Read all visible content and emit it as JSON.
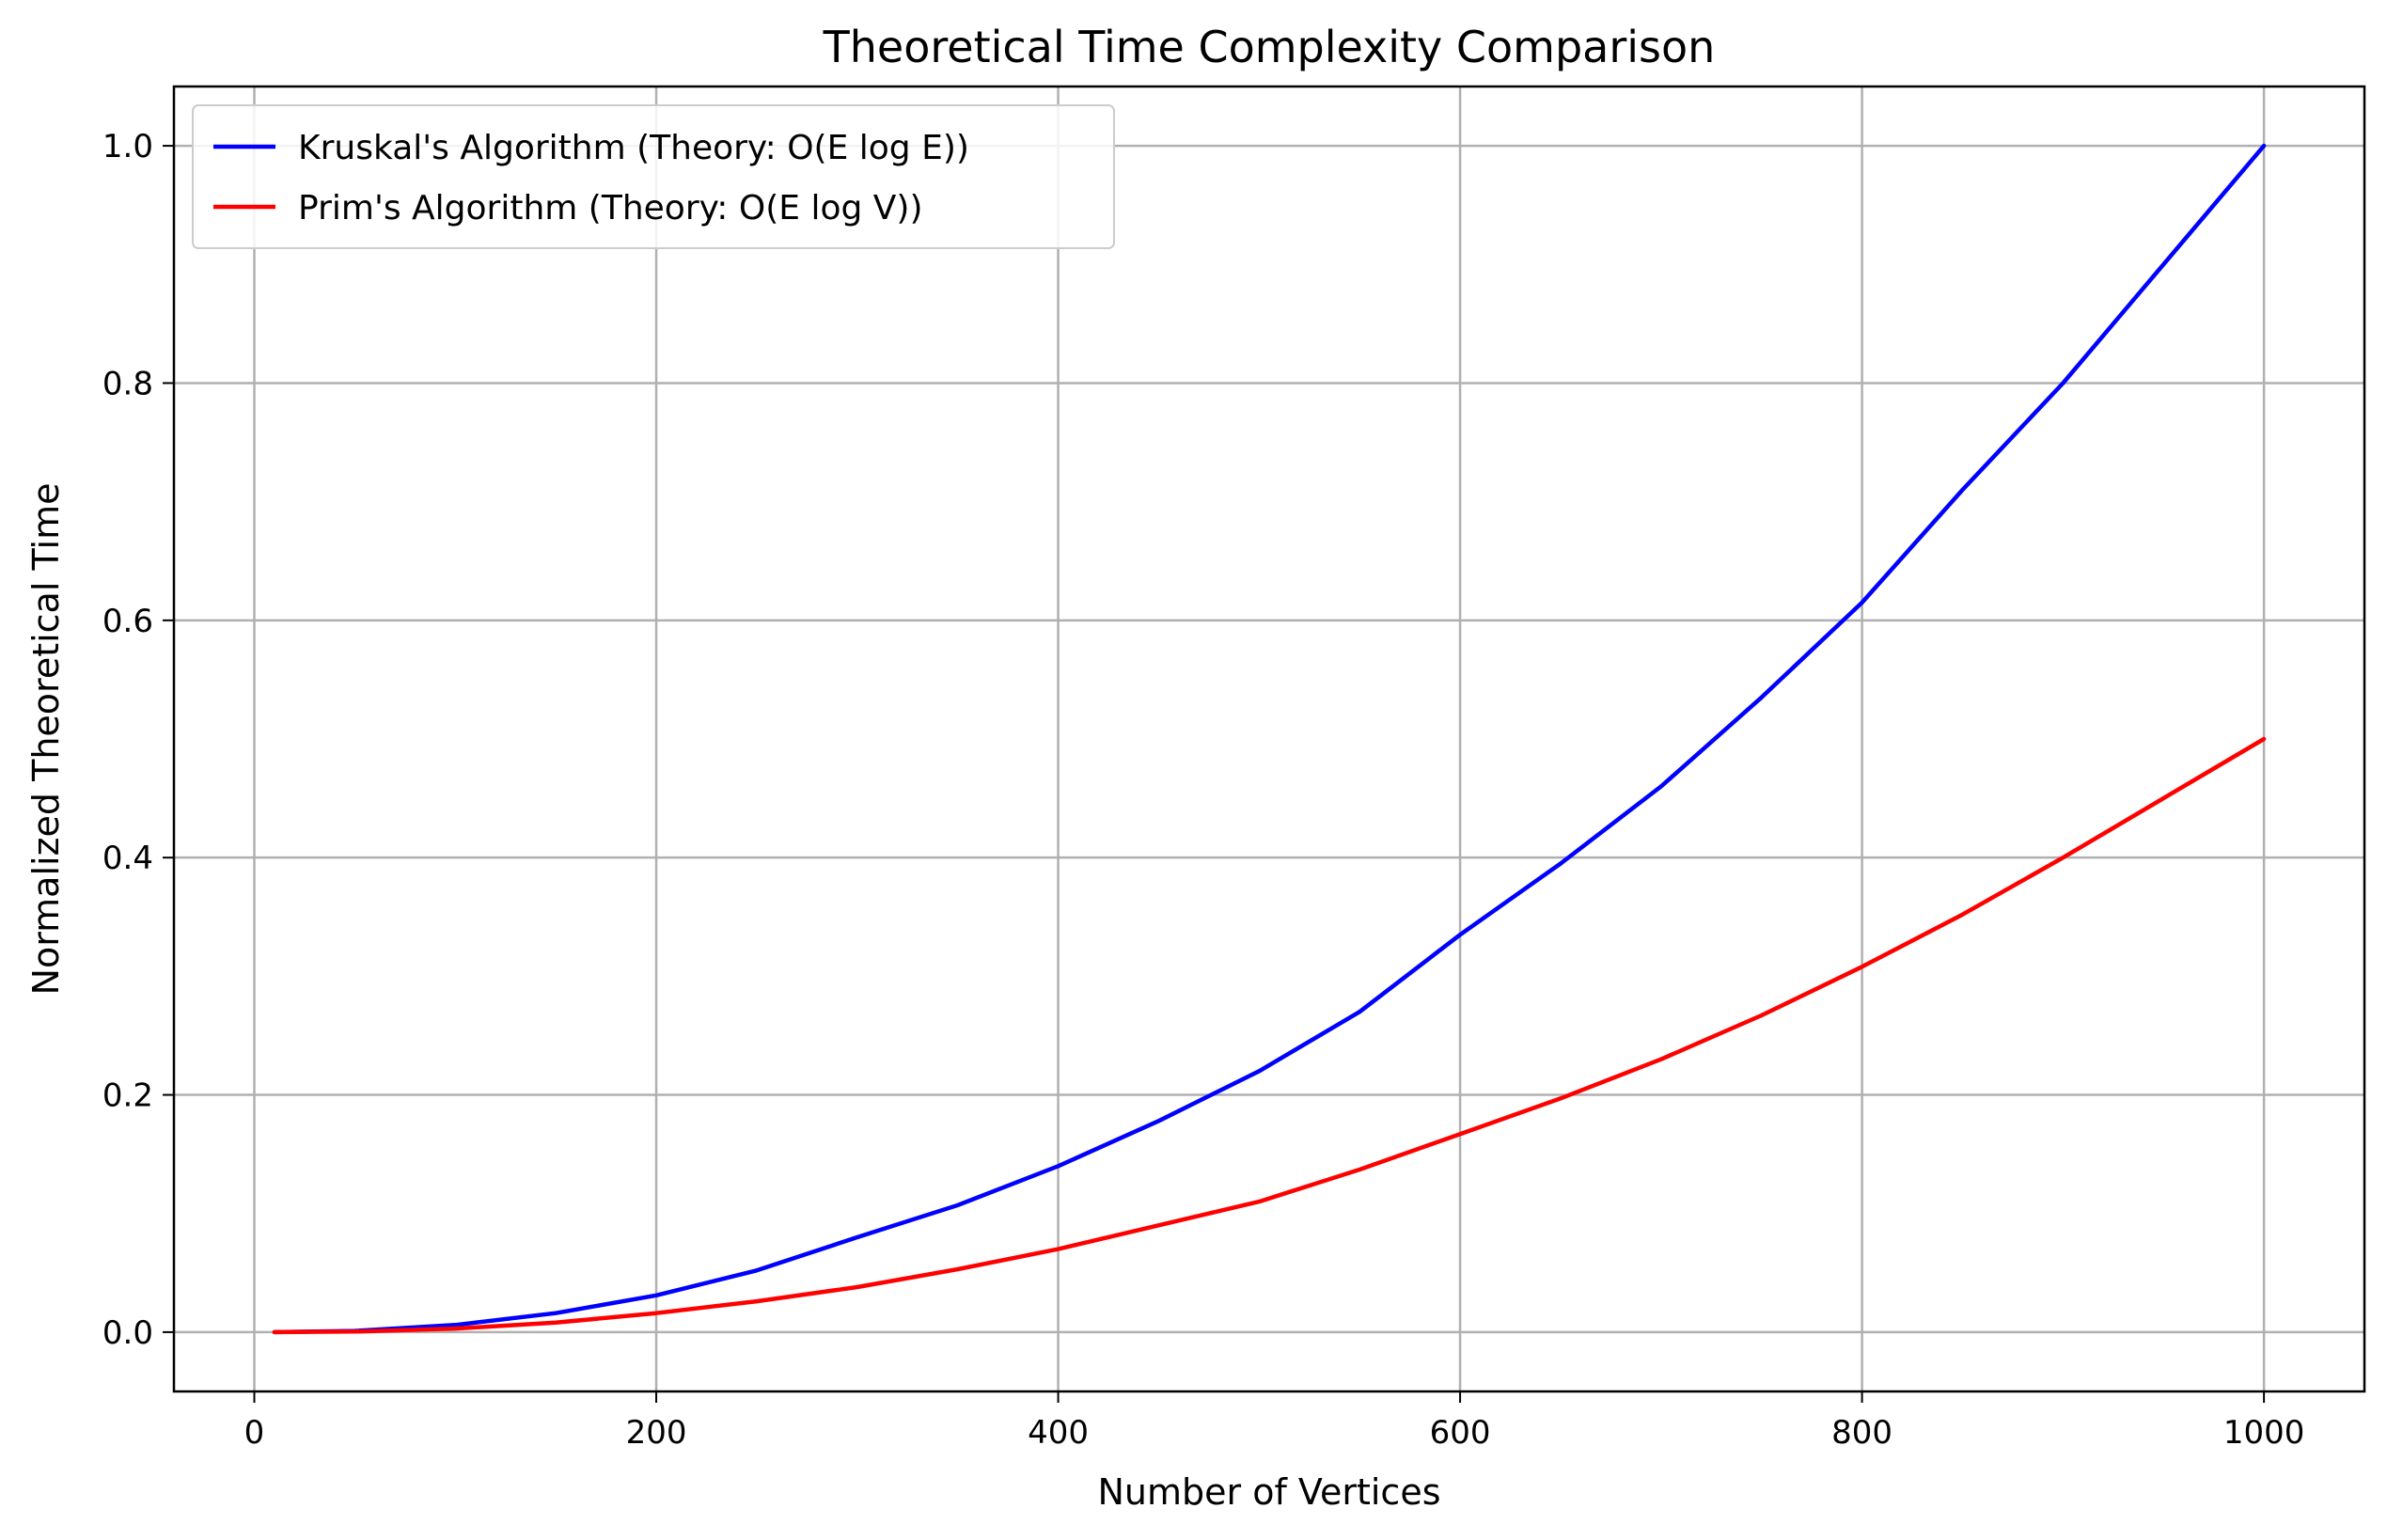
{
  "chart_data": {
    "type": "line",
    "title": "Theoretical Time Complexity Comparison",
    "xlabel": "Number of Vertices",
    "ylabel": "Normalized Theoretical Time",
    "xlim": [
      -40,
      1050
    ],
    "ylim": [
      -0.05,
      1.05
    ],
    "x_ticks": [
      0,
      200,
      400,
      600,
      800,
      1000
    ],
    "x_tick_labels": [
      "0",
      "200",
      "400",
      "600",
      "800",
      "1000"
    ],
    "y_ticks": [
      0.0,
      0.2,
      0.4,
      0.6,
      0.8,
      1.0
    ],
    "y_tick_labels": [
      "0.0",
      "0.2",
      "0.4",
      "0.6",
      "0.8",
      "1.0"
    ],
    "grid": true,
    "legend_position": "top-left",
    "x": [
      10,
      50,
      100,
      150,
      200,
      250,
      300,
      350,
      400,
      450,
      500,
      550,
      600,
      650,
      700,
      750,
      800,
      850,
      900,
      950,
      1000
    ],
    "series": [
      {
        "name": "Kruskal's Algorithm (Theory: O(E log E))",
        "color": "#0000ff",
        "values": [
          0.0,
          0.001,
          0.006,
          0.016,
          0.031,
          0.052,
          0.08,
          0.107,
          0.14,
          0.178,
          0.22,
          0.27,
          0.335,
          0.395,
          0.46,
          0.535,
          0.615,
          0.71,
          0.8,
          0.9,
          1.0
        ]
      },
      {
        "name": "Prim's Algorithm (Theory: O(E log V))",
        "color": "#ff0000",
        "values": [
          0.0,
          0.0005,
          0.003,
          0.008,
          0.016,
          0.026,
          0.038,
          0.053,
          0.07,
          0.09,
          0.11,
          0.137,
          0.167,
          0.197,
          0.23,
          0.267,
          0.308,
          0.352,
          0.4,
          0.45,
          0.5
        ]
      }
    ]
  }
}
